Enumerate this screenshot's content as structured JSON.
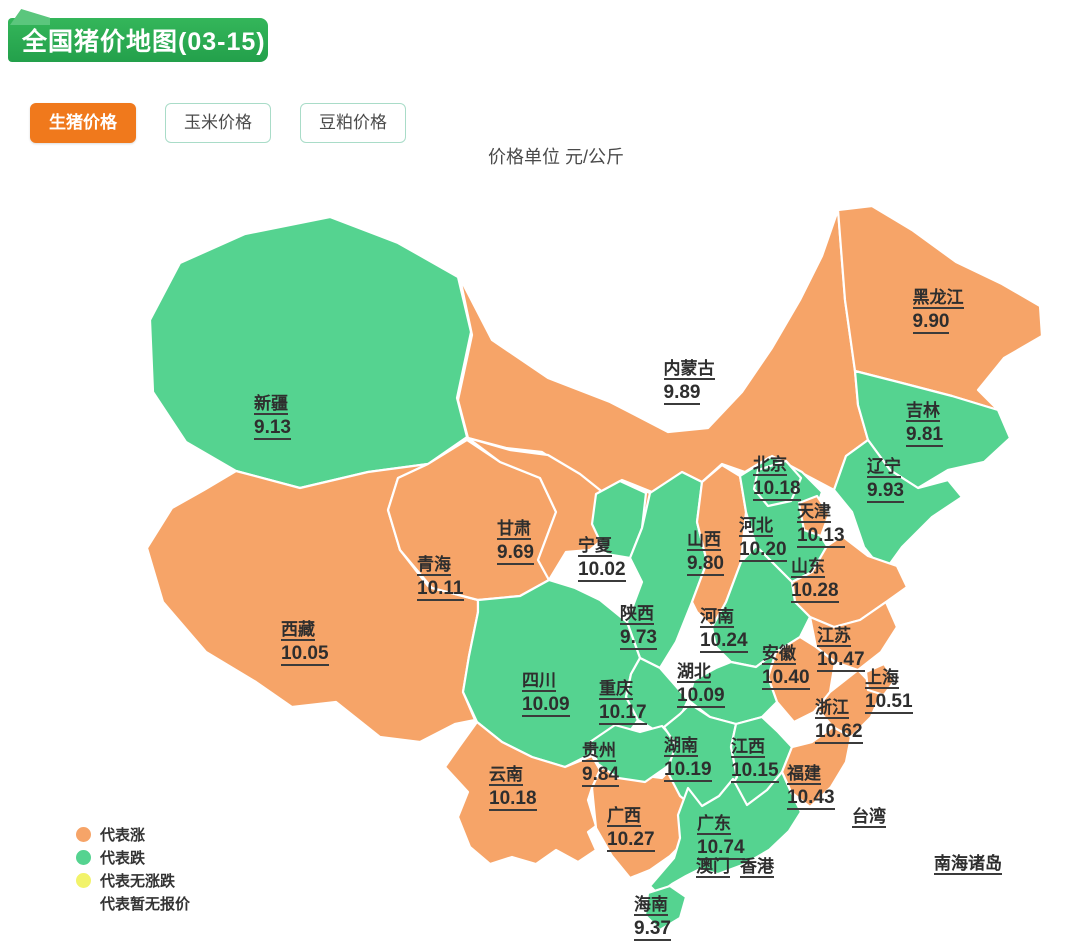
{
  "header": {
    "title": "全国猪价地图(03-15)",
    "bg_color": "#28AB4E"
  },
  "tabs": [
    {
      "label": "生猪价格",
      "active": true
    },
    {
      "label": "玉米价格",
      "active": false
    },
    {
      "label": "豆粕价格",
      "active": false
    }
  ],
  "unit_note": "价格单位 元/公斤",
  "legend": [
    {
      "label": "代表涨",
      "type": "up"
    },
    {
      "label": "代表跌",
      "type": "down"
    },
    {
      "label": "代表无涨跌",
      "type": "no_change"
    },
    {
      "label": "代表暂无报价",
      "type": "no_quote"
    }
  ],
  "map": {
    "colors": {
      "up": "#F6A468",
      "down": "#55D390",
      "no_change": "#F2F36A",
      "no_quote": "#FFFFFF"
    },
    "provinces": [
      {
        "id": "xinjiang",
        "name": "新疆",
        "price": "9.13",
        "trend": "down"
      },
      {
        "id": "xizang",
        "name": "西藏",
        "price": "10.05",
        "trend": "up"
      },
      {
        "id": "qinghai",
        "name": "青海",
        "price": "10.11",
        "trend": "up"
      },
      {
        "id": "gansu",
        "name": "甘肃",
        "price": "9.69",
        "trend": "up"
      },
      {
        "id": "ningxia",
        "name": "宁夏",
        "price": "10.02",
        "trend": "down"
      },
      {
        "id": "neimenggu",
        "name": "内蒙古",
        "price": "9.89",
        "trend": "up"
      },
      {
        "id": "heilongjiang",
        "name": "黑龙江",
        "price": "9.90",
        "trend": "up"
      },
      {
        "id": "jilin",
        "name": "吉林",
        "price": "9.81",
        "trend": "down"
      },
      {
        "id": "liaoning",
        "name": "辽宁",
        "price": "9.93",
        "trend": "down"
      },
      {
        "id": "beijing",
        "name": "北京",
        "price": "10.18",
        "trend": "down"
      },
      {
        "id": "tianjin",
        "name": "天津",
        "price": "10.13",
        "trend": "up"
      },
      {
        "id": "hebei",
        "name": "河北",
        "price": "10.20",
        "trend": "down"
      },
      {
        "id": "shanxi",
        "name": "山西",
        "price": "9.80",
        "trend": "up"
      },
      {
        "id": "shandong",
        "name": "山东",
        "price": "10.28",
        "trend": "up"
      },
      {
        "id": "shaanxi",
        "name": "陕西",
        "price": "9.73",
        "trend": "down"
      },
      {
        "id": "henan",
        "name": "河南",
        "price": "10.24",
        "trend": "down"
      },
      {
        "id": "jiangsu",
        "name": "江苏",
        "price": "10.47",
        "trend": "up"
      },
      {
        "id": "anhui",
        "name": "安徽",
        "price": "10.40",
        "trend": "up"
      },
      {
        "id": "shanghai",
        "name": "上海",
        "price": "10.51",
        "trend": "up"
      },
      {
        "id": "hubei",
        "name": "湖北",
        "price": "10.09",
        "trend": "down"
      },
      {
        "id": "sichuan",
        "name": "四川",
        "price": "10.09",
        "trend": "down"
      },
      {
        "id": "chongqing",
        "name": "重庆",
        "price": "10.17",
        "trend": "down"
      },
      {
        "id": "zhejiang",
        "name": "浙江",
        "price": "10.62",
        "trend": "up"
      },
      {
        "id": "hunan",
        "name": "湖南",
        "price": "10.19",
        "trend": "down"
      },
      {
        "id": "jiangxi",
        "name": "江西",
        "price": "10.15",
        "trend": "down"
      },
      {
        "id": "guizhou",
        "name": "贵州",
        "price": "9.84",
        "trend": "down"
      },
      {
        "id": "fujian",
        "name": "福建",
        "price": "10.43",
        "trend": "up"
      },
      {
        "id": "yunnan",
        "name": "云南",
        "price": "10.18",
        "trend": "up"
      },
      {
        "id": "guangxi",
        "name": "广西",
        "price": "10.27",
        "trend": "up"
      },
      {
        "id": "guangdong",
        "name": "广东",
        "price": "10.74",
        "trend": "down"
      },
      {
        "id": "hainan",
        "name": "海南",
        "price": "9.37",
        "trend": "down"
      },
      {
        "id": "taiwan",
        "name": "台湾",
        "price": "",
        "trend": "no_quote"
      },
      {
        "id": "aomen",
        "name": "澳门",
        "price": "",
        "trend": "no_quote"
      },
      {
        "id": "xianggang",
        "name": "香港",
        "price": "",
        "trend": "no_quote"
      },
      {
        "id": "nanhai",
        "name": "南海诸岛",
        "price": "",
        "trend": "no_quote"
      }
    ]
  }
}
